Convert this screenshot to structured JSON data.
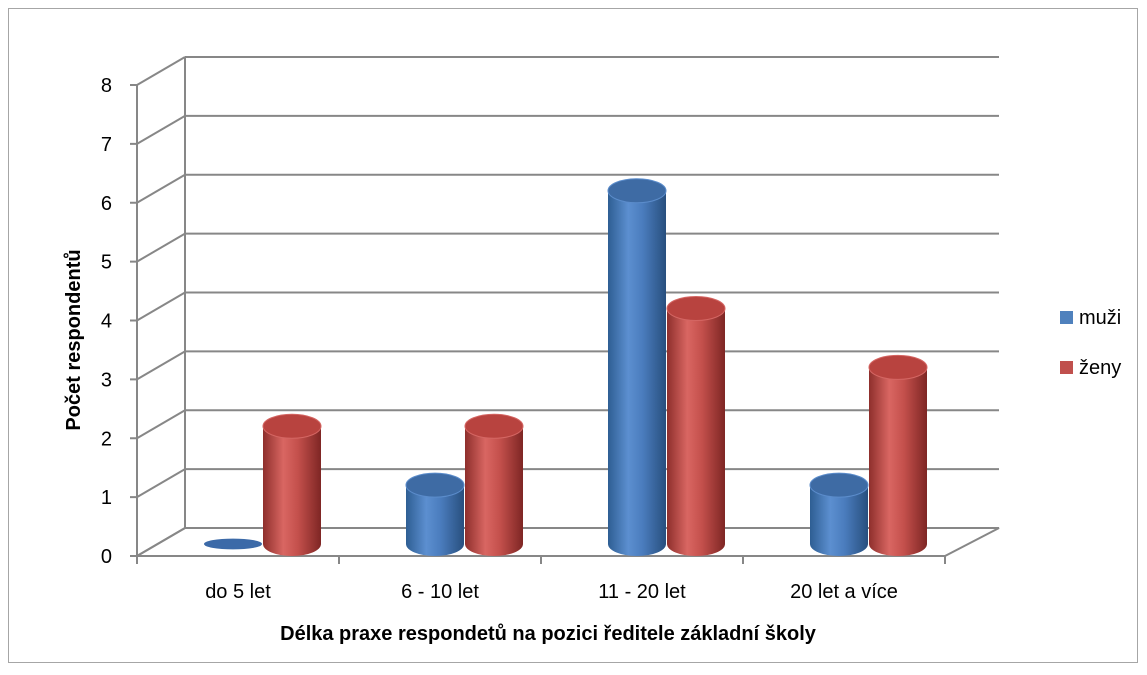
{
  "chart_data": {
    "type": "bar",
    "categories": [
      "do 5 let",
      "6 - 10 let",
      "11 - 20 let",
      "20 let a více"
    ],
    "series": [
      {
        "name": "muži",
        "values": [
          0,
          1,
          6,
          1
        ],
        "color": "#4f81bd"
      },
      {
        "name": "ženy",
        "values": [
          2,
          2,
          4,
          3
        ],
        "color": "#c0504d"
      }
    ],
    "xlabel": "Délka praxe respondetů na pozici ředitele základní školy",
    "ylabel": "Počet respondentů",
    "ylim": [
      0,
      8
    ],
    "yticks": [
      "0",
      "1",
      "2",
      "3",
      "4",
      "5",
      "6",
      "7",
      "8"
    ],
    "grid": true,
    "legend": "right",
    "style": "3d-cylinder"
  }
}
